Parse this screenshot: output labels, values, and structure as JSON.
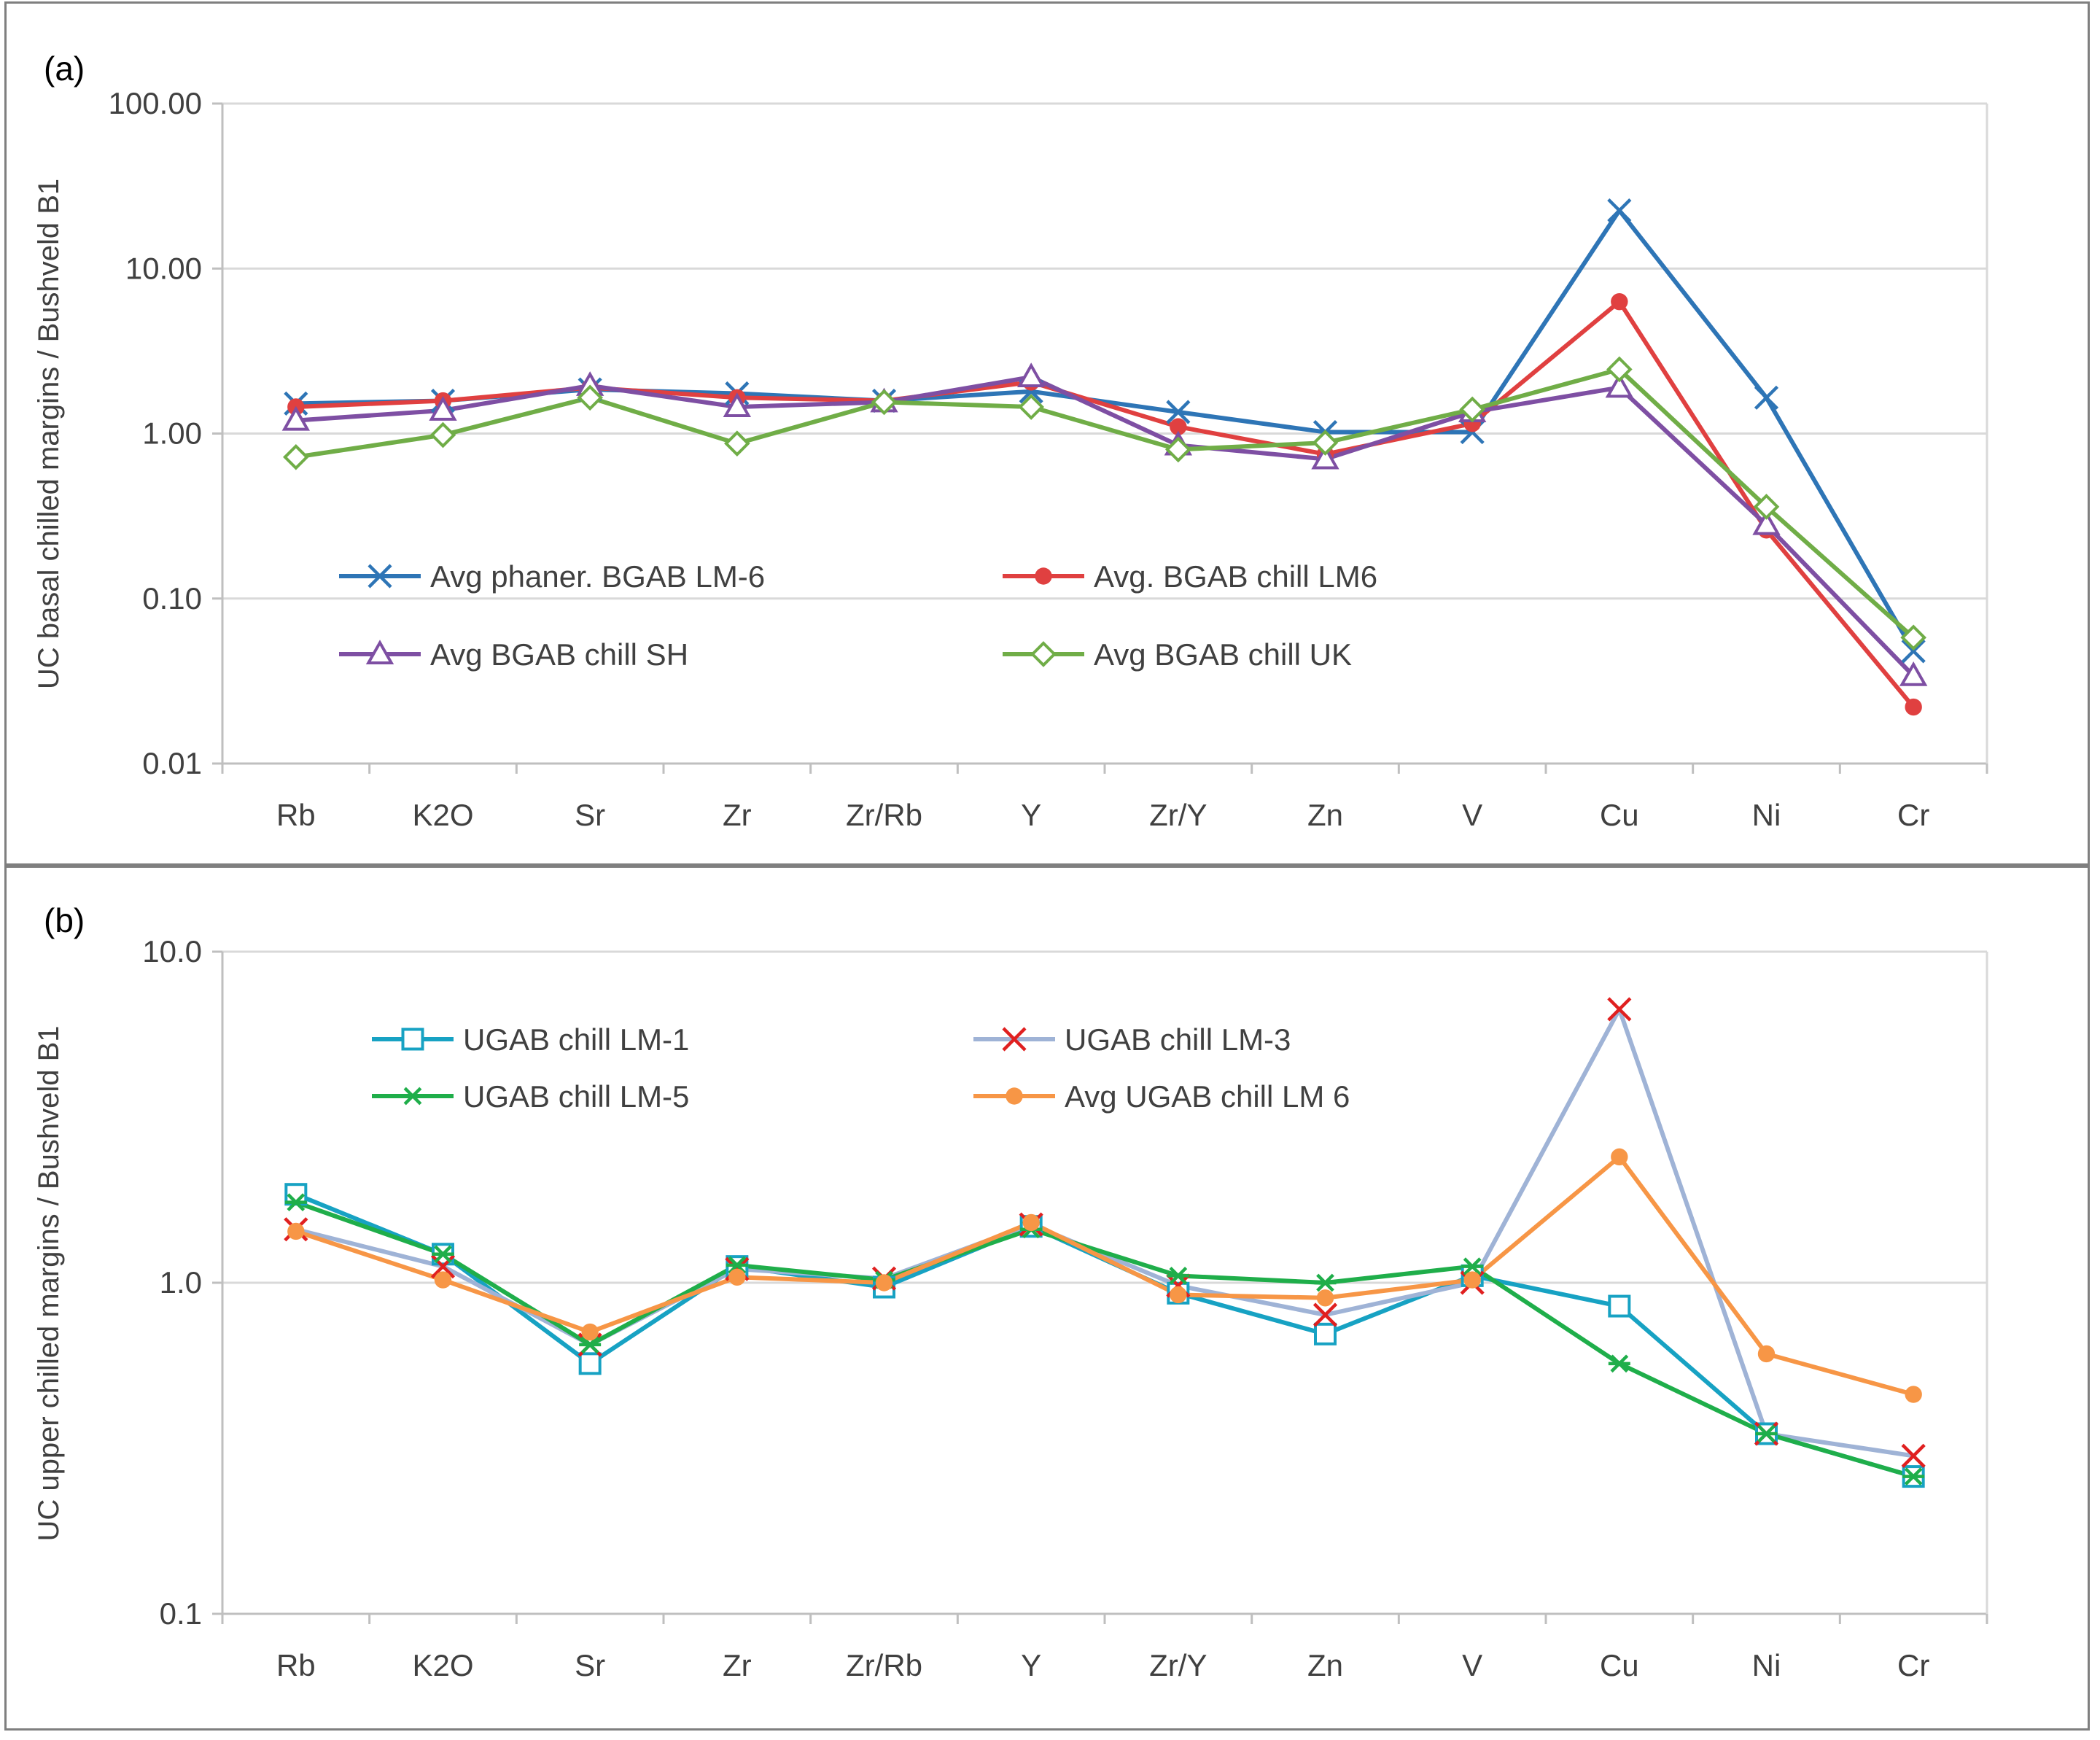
{
  "chart_data": [
    {
      "type": "line",
      "panel_label": "(a)",
      "ylabel": "UC basal chilled margins  / Bushveld B1",
      "xlabel": "",
      "yscale": "log",
      "ylim": [
        0.01,
        100
      ],
      "yticks": [
        0.01,
        0.1,
        1,
        10,
        100
      ],
      "ytick_labels": [
        "0.01",
        "0.10",
        "1.00",
        "10.00",
        "100.00"
      ],
      "grid": true,
      "legend_position": "lower-left inside plot, two columns",
      "categories": [
        "Rb",
        "K2O",
        "Sr",
        "Zr",
        "Zr/Rb",
        "Y",
        "Zr/Y",
        "Zn",
        "V",
        "Cu",
        "Ni",
        "Cr"
      ],
      "series": [
        {
          "name": "Avg phaner. BGAB LM-6",
          "color": "#2e75b6",
          "marker": "x",
          "values": [
            1.52,
            1.58,
            1.85,
            1.75,
            1.58,
            1.8,
            1.35,
            1.02,
            1.02,
            22.5,
            1.65,
            0.048
          ]
        },
        {
          "name": "Avg. BGAB chill LM6",
          "color": "#e04040",
          "marker": "circle",
          "values": [
            1.45,
            1.58,
            1.9,
            1.65,
            1.58,
            2.05,
            1.1,
            0.75,
            1.15,
            6.3,
            0.26,
            0.022
          ]
        },
        {
          "name": "Avg BGAB chill SH",
          "color": "#7e4fa3",
          "marker": "triangle",
          "values": [
            1.2,
            1.38,
            1.95,
            1.45,
            1.55,
            2.2,
            0.85,
            0.7,
            1.35,
            1.9,
            0.28,
            0.034
          ]
        },
        {
          "name": "Avg BGAB chill UK",
          "color": "#70ad47",
          "marker": "diamond",
          "values": [
            0.72,
            0.98,
            1.65,
            0.87,
            1.55,
            1.45,
            0.8,
            0.88,
            1.4,
            2.45,
            0.36,
            0.058
          ]
        }
      ]
    },
    {
      "type": "line",
      "panel_label": "(b)",
      "ylabel": "UC upper chilled margins  / Bushveld B1",
      "xlabel": "",
      "yscale": "log",
      "ylim": [
        0.1,
        10
      ],
      "yticks": [
        0.1,
        1,
        10
      ],
      "ytick_labels": [
        "0.1",
        "1.0",
        "10.0"
      ],
      "grid": true,
      "legend_position": "top-left inside plot, two columns",
      "categories": [
        "Rb",
        "K2O",
        "Sr",
        "Zr",
        "Zr/Rb",
        "Y",
        "Zr/Y",
        "Zn",
        "V",
        "Cu",
        "Ni",
        "Cr"
      ],
      "series": [
        {
          "name": "UGAB chill LM-1",
          "color": "#17a2c3",
          "marker": "square",
          "values": [
            1.85,
            1.22,
            0.57,
            1.12,
            0.97,
            1.48,
            0.93,
            0.7,
            1.05,
            0.85,
            0.35,
            0.26
          ]
        },
        {
          "name": "UGAB chill LM-3",
          "color": "#9fb3d6",
          "marker": "x",
          "marker_color": "#e02020",
          "values": [
            1.45,
            1.12,
            0.65,
            1.1,
            1.03,
            1.5,
            0.98,
            0.8,
            1.0,
            6.7,
            0.35,
            0.3
          ]
        },
        {
          "name": "UGAB chill LM-5",
          "color": "#1fae4a",
          "marker": "asterisk",
          "values": [
            1.75,
            1.22,
            0.65,
            1.13,
            1.02,
            1.45,
            1.05,
            1.0,
            1.12,
            0.57,
            0.35,
            0.26
          ]
        },
        {
          "name": "Avg UGAB chill LM 6",
          "color": "#f79646",
          "marker": "circle",
          "values": [
            1.43,
            1.02,
            0.71,
            1.04,
            1.0,
            1.52,
            0.92,
            0.9,
            1.02,
            2.4,
            0.61,
            0.46
          ]
        }
      ]
    }
  ]
}
